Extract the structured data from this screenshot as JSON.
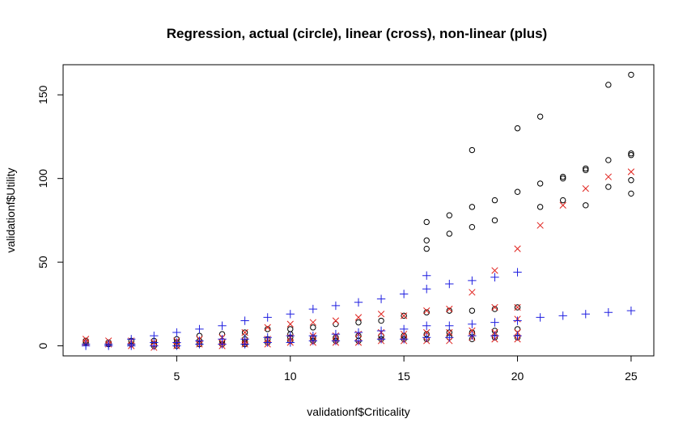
{
  "chart_data": {
    "type": "scatter",
    "title": "Regression, actual (circle), linear (cross), non-linear (plus)",
    "xlabel": "validationf$Criticality",
    "ylabel": "validationf$Utility",
    "xlim": [
      0,
      26
    ],
    "ylim": [
      -6,
      168
    ],
    "x_ticks": [
      5,
      10,
      15,
      20,
      25
    ],
    "y_ticks": [
      0,
      50,
      100,
      150
    ],
    "grid": false,
    "series": [
      {
        "name": "actual",
        "marker": "circle",
        "color": "#000000",
        "points": [
          [
            1,
            2
          ],
          [
            1,
            3
          ],
          [
            2,
            1
          ],
          [
            2,
            2
          ],
          [
            3,
            1
          ],
          [
            3,
            3
          ],
          [
            4,
            0
          ],
          [
            4,
            1
          ],
          [
            4,
            3
          ],
          [
            5,
            0
          ],
          [
            5,
            2
          ],
          [
            5,
            4
          ],
          [
            6,
            1
          ],
          [
            6,
            3
          ],
          [
            6,
            6
          ],
          [
            7,
            1
          ],
          [
            7,
            3
          ],
          [
            7,
            7
          ],
          [
            8,
            1
          ],
          [
            8,
            2
          ],
          [
            8,
            4
          ],
          [
            8,
            8
          ],
          [
            9,
            2
          ],
          [
            9,
            4
          ],
          [
            9,
            10
          ],
          [
            10,
            3
          ],
          [
            10,
            5
          ],
          [
            10,
            7
          ],
          [
            10,
            10
          ],
          [
            11,
            3
          ],
          [
            11,
            5
          ],
          [
            11,
            11
          ],
          [
            12,
            3
          ],
          [
            12,
            5
          ],
          [
            12,
            13
          ],
          [
            13,
            3
          ],
          [
            13,
            6
          ],
          [
            13,
            14
          ],
          [
            14,
            4
          ],
          [
            14,
            6
          ],
          [
            14,
            15
          ],
          [
            15,
            4
          ],
          [
            15,
            6
          ],
          [
            15,
            18
          ],
          [
            16,
            4
          ],
          [
            16,
            7
          ],
          [
            16,
            20
          ],
          [
            16,
            58
          ],
          [
            16,
            63
          ],
          [
            16,
            74
          ],
          [
            17,
            5
          ],
          [
            17,
            8
          ],
          [
            17,
            21
          ],
          [
            17,
            67
          ],
          [
            17,
            78
          ],
          [
            18,
            4
          ],
          [
            18,
            8
          ],
          [
            18,
            21
          ],
          [
            18,
            71
          ],
          [
            18,
            83
          ],
          [
            18,
            117
          ],
          [
            19,
            5
          ],
          [
            19,
            9
          ],
          [
            19,
            22
          ],
          [
            19,
            75
          ],
          [
            19,
            87
          ],
          [
            20,
            5
          ],
          [
            20,
            10
          ],
          [
            20,
            23
          ],
          [
            20,
            92
          ],
          [
            20,
            130
          ],
          [
            21,
            83
          ],
          [
            21,
            97
          ],
          [
            21,
            137
          ],
          [
            22,
            87
          ],
          [
            22,
            100
          ],
          [
            22,
            101
          ],
          [
            23,
            84
          ],
          [
            23,
            105
          ],
          [
            23,
            106
          ],
          [
            24,
            95
          ],
          [
            24,
            111
          ],
          [
            24,
            156
          ],
          [
            25,
            91
          ],
          [
            25,
            99
          ],
          [
            25,
            114
          ],
          [
            25,
            115
          ],
          [
            25,
            162
          ]
        ]
      },
      {
        "name": "linear",
        "marker": "cross",
        "color": "#e0201b",
        "points": [
          [
            1,
            4
          ],
          [
            1,
            2
          ],
          [
            2,
            3
          ],
          [
            2,
            1
          ],
          [
            3,
            3
          ],
          [
            3,
            0
          ],
          [
            4,
            2
          ],
          [
            4,
            -1
          ],
          [
            5,
            3
          ],
          [
            5,
            0
          ],
          [
            6,
            4
          ],
          [
            6,
            1
          ],
          [
            7,
            5
          ],
          [
            7,
            2
          ],
          [
            7,
            0
          ],
          [
            8,
            8
          ],
          [
            8,
            3
          ],
          [
            8,
            1
          ],
          [
            9,
            11
          ],
          [
            9,
            4
          ],
          [
            9,
            1
          ],
          [
            10,
            13
          ],
          [
            10,
            5
          ],
          [
            10,
            2
          ],
          [
            11,
            14
          ],
          [
            11,
            6
          ],
          [
            11,
            2
          ],
          [
            12,
            15
          ],
          [
            12,
            6
          ],
          [
            12,
            2
          ],
          [
            13,
            17
          ],
          [
            13,
            7
          ],
          [
            13,
            2
          ],
          [
            14,
            19
          ],
          [
            14,
            8
          ],
          [
            14,
            3
          ],
          [
            15,
            18
          ],
          [
            15,
            7
          ],
          [
            15,
            3
          ],
          [
            16,
            21
          ],
          [
            16,
            8
          ],
          [
            16,
            3
          ],
          [
            17,
            22
          ],
          [
            17,
            8
          ],
          [
            17,
            3
          ],
          [
            18,
            32
          ],
          [
            18,
            9
          ],
          [
            18,
            5
          ],
          [
            19,
            45
          ],
          [
            19,
            23
          ],
          [
            19,
            8
          ],
          [
            19,
            4
          ],
          [
            20,
            58
          ],
          [
            20,
            23
          ],
          [
            20,
            16
          ],
          [
            20,
            8
          ],
          [
            20,
            4
          ],
          [
            21,
            72
          ],
          [
            22,
            84
          ],
          [
            23,
            94
          ],
          [
            24,
            101
          ],
          [
            25,
            104
          ]
        ]
      },
      {
        "name": "non-linear",
        "marker": "plus",
        "color": "#1f1fe0",
        "points": [
          [
            1,
            1
          ],
          [
            1,
            0
          ],
          [
            2,
            1
          ],
          [
            2,
            0
          ],
          [
            3,
            4
          ],
          [
            3,
            1
          ],
          [
            3,
            0
          ],
          [
            4,
            6
          ],
          [
            4,
            2
          ],
          [
            4,
            0
          ],
          [
            5,
            8
          ],
          [
            5,
            2
          ],
          [
            5,
            0
          ],
          [
            6,
            10
          ],
          [
            6,
            3
          ],
          [
            6,
            1
          ],
          [
            7,
            12
          ],
          [
            7,
            4
          ],
          [
            7,
            1
          ],
          [
            8,
            15
          ],
          [
            8,
            4
          ],
          [
            8,
            1
          ],
          [
            9,
            17
          ],
          [
            9,
            5
          ],
          [
            9,
            2
          ],
          [
            10,
            19
          ],
          [
            10,
            6
          ],
          [
            10,
            2
          ],
          [
            11,
            22
          ],
          [
            11,
            6
          ],
          [
            11,
            3
          ],
          [
            12,
            24
          ],
          [
            12,
            7
          ],
          [
            12,
            3
          ],
          [
            13,
            26
          ],
          [
            13,
            8
          ],
          [
            13,
            3
          ],
          [
            14,
            28
          ],
          [
            14,
            9
          ],
          [
            14,
            4
          ],
          [
            15,
            31
          ],
          [
            15,
            10
          ],
          [
            15,
            4
          ],
          [
            16,
            42
          ],
          [
            16,
            34
          ],
          [
            16,
            12
          ],
          [
            16,
            5
          ],
          [
            17,
            37
          ],
          [
            17,
            12
          ],
          [
            17,
            5
          ],
          [
            18,
            39
          ],
          [
            18,
            13
          ],
          [
            18,
            6
          ],
          [
            19,
            41
          ],
          [
            19,
            14
          ],
          [
            19,
            6
          ],
          [
            20,
            44
          ],
          [
            20,
            15
          ],
          [
            20,
            6
          ],
          [
            21,
            17
          ],
          [
            22,
            18
          ],
          [
            23,
            19
          ],
          [
            24,
            20
          ],
          [
            25,
            21
          ]
        ]
      }
    ]
  }
}
